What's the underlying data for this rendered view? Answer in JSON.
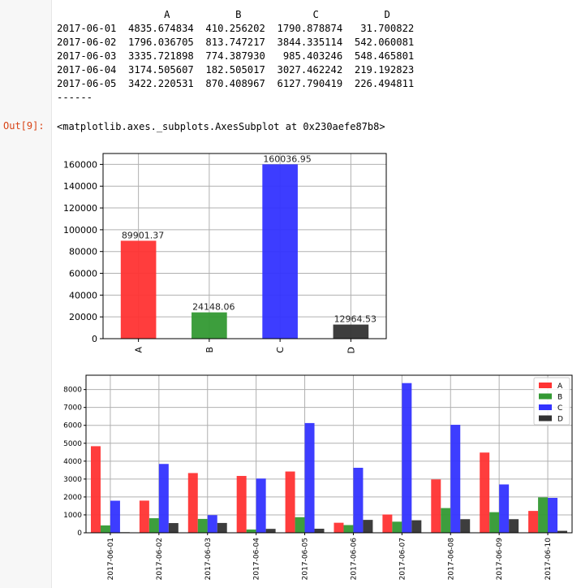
{
  "prompt_label": "Out[9]:",
  "df_text": "                  A           B            C           D\n2017-06-01  4835.674834  410.256202  1790.878874   31.700822\n2017-06-02  1796.036705  813.747217  3844.335114  542.060081\n2017-06-03  3335.721898  774.387930   985.403246  548.465801\n2017-06-04  3174.505607  182.505017  3027.462242  219.192823\n2017-06-05  3422.220531  870.408967  6127.790419  226.494811\n------",
  "output_repr": "<matplotlib.axes._subplots.AxesSubplot at 0x230aefe87b8>",
  "colors": {
    "A": "#ff3333",
    "B": "#339933",
    "C": "#3333ff",
    "D": "#333333"
  },
  "chart_data": [
    {
      "type": "bar",
      "categories": [
        "A",
        "B",
        "C",
        "D"
      ],
      "values": [
        89901.37,
        24148.06,
        160036.95,
        12964.53
      ],
      "value_labels": [
        "89901.37",
        "24148.06",
        "160036.95",
        "12964.53"
      ],
      "ylim": [
        0,
        170000
      ],
      "yticks": [
        0,
        20000,
        40000,
        60000,
        80000,
        100000,
        120000,
        140000,
        160000
      ],
      "grid": true,
      "xlabel": "",
      "ylabel": "",
      "title": ""
    },
    {
      "type": "bar",
      "categories": [
        "2017-06-01",
        "2017-06-02",
        "2017-06-03",
        "2017-06-04",
        "2017-06-05",
        "2017-06-06",
        "2017-06-07",
        "2017-06-08",
        "2017-06-09",
        "2017-06-10"
      ],
      "series": [
        {
          "name": "A",
          "values": [
            4835.67,
            1796.04,
            3335.72,
            3174.51,
            3422.22,
            560,
            1020,
            2980,
            4480,
            1220
          ]
        },
        {
          "name": "B",
          "values": [
            410.26,
            813.75,
            774.39,
            182.51,
            870.41,
            430,
            620,
            1380,
            1150,
            1980
          ]
        },
        {
          "name": "C",
          "values": [
            1790.88,
            3844.34,
            985.4,
            3027.46,
            6127.79,
            3630,
            8360,
            6030,
            2700,
            1950
          ]
        },
        {
          "name": "D",
          "values": [
            31.7,
            542.06,
            548.47,
            219.19,
            226.49,
            720,
            700,
            760,
            760,
            110
          ]
        }
      ],
      "ylim": [
        0,
        8800
      ],
      "yticks": [
        0,
        1000,
        2000,
        3000,
        4000,
        5000,
        6000,
        7000,
        8000
      ],
      "legend": "top-right",
      "grid": true,
      "xlabel": "",
      "ylabel": "",
      "title": ""
    }
  ]
}
